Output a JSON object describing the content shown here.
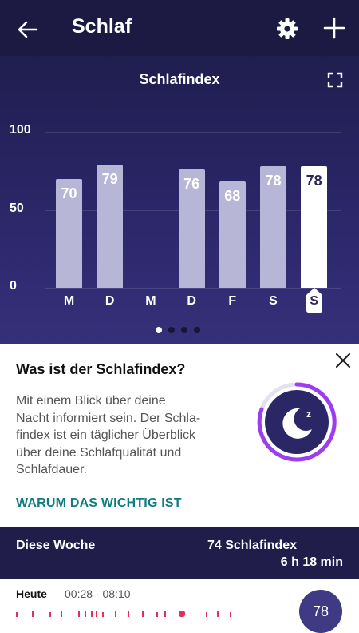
{
  "header": {
    "title": "Schlaf"
  },
  "chart_section": {
    "title": "Schlafindex"
  },
  "chart_data": {
    "type": "bar",
    "categories": [
      "M",
      "D",
      "M",
      "D",
      "F",
      "S",
      "S"
    ],
    "values": [
      70,
      79,
      null,
      76,
      68,
      78,
      78
    ],
    "value_labels": [
      "70",
      "79",
      "",
      "76",
      "68",
      "78",
      "78"
    ],
    "ylim": [
      0,
      100
    ],
    "y_ticks": [
      "0",
      "50",
      "100"
    ],
    "highlight_index": 6,
    "colors": {
      "bar": "#b8b6d6",
      "highlight": "#ffffff"
    }
  },
  "pager": {
    "count": 4,
    "active": 0
  },
  "info_card": {
    "title": "Was ist der Schlafindex?",
    "body_lines": [
      "Mit einem Blick über deine",
      "Nacht informiert sein. Der Schla-",
      "findex ist ein täglicher Überblick",
      "über deine Schlafqualität und",
      "Schlafdauer."
    ],
    "link": "WARUM DAS WICHTIG IST"
  },
  "week_summary": {
    "label": "Diese Woche",
    "score": "74 Schlafindex",
    "duration": "6 h 18 min"
  },
  "today": {
    "label": "Heute",
    "time_range": "00:28 - 08:10",
    "score": "78"
  },
  "colors": {
    "accent_teal": "#0f7c84",
    "accent_purple": "#9c3df0",
    "stage_pink": "#e0315c",
    "header_bg": "#1c1a42"
  },
  "icons": {
    "back": "arrow-left-icon",
    "settings": "gear-icon",
    "add": "plus-icon",
    "expand": "expand-icon",
    "close": "close-icon",
    "sleep": "moon-zz-icon"
  }
}
